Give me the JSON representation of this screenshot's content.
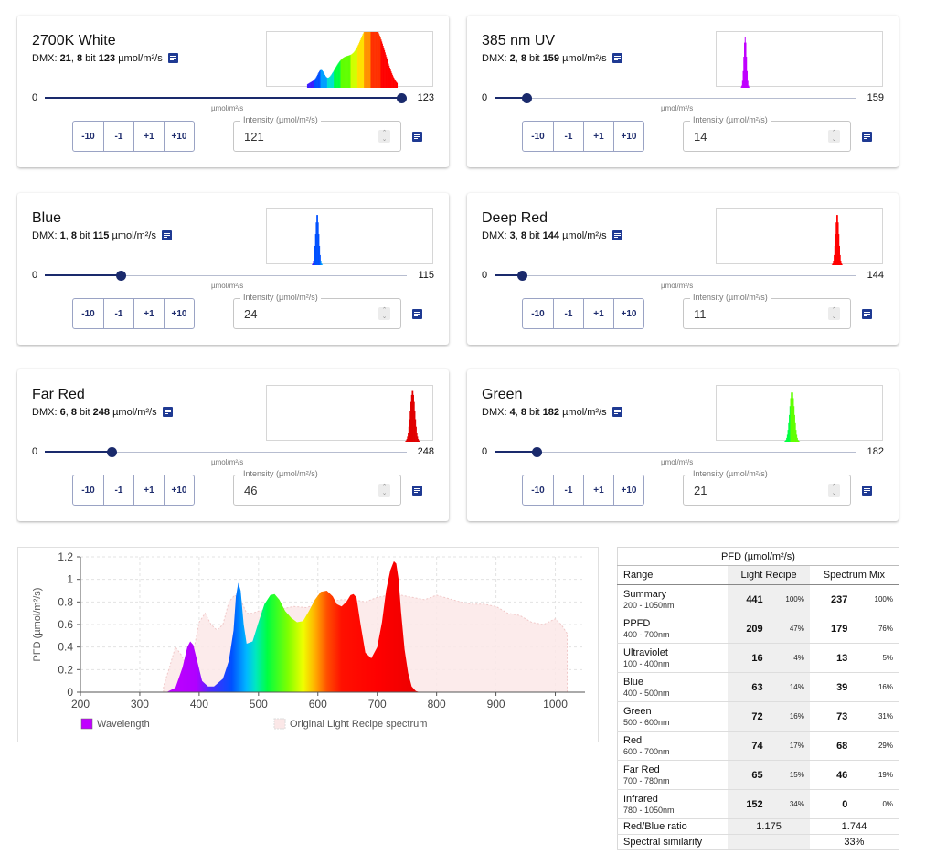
{
  "channels": [
    {
      "name": "2700K White",
      "dmx_prefix": "DMX: ",
      "dmx_channel": "21",
      "bit_sep": ", ",
      "bits": "8",
      "bit_word": " bit ",
      "max_text": "123",
      "unit_suffix": " µmol/m²/s",
      "min": "0",
      "max": "123",
      "value": 121,
      "max_value": 123,
      "value_text": "121",
      "spectrum": "white"
    },
    {
      "name": "385 nm UV",
      "dmx_prefix": "DMX: ",
      "dmx_channel": "2",
      "bit_sep": ", ",
      "bits": "8",
      "bit_word": " bit ",
      "max_text": "159",
      "unit_suffix": " µmol/m²/s",
      "min": "0",
      "max": "159",
      "value": 14,
      "max_value": 159,
      "value_text": "14",
      "spectrum": "uv"
    },
    {
      "name": "Blue",
      "dmx_prefix": "DMX: ",
      "dmx_channel": "1",
      "bit_sep": ", ",
      "bits": "8",
      "bit_word": " bit ",
      "max_text": "115",
      "unit_suffix": " µmol/m²/s",
      "min": "0",
      "max": "115",
      "value": 24,
      "max_value": 115,
      "value_text": "24",
      "spectrum": "blue"
    },
    {
      "name": "Deep Red",
      "dmx_prefix": "DMX: ",
      "dmx_channel": "3",
      "bit_sep": ", ",
      "bits": "8",
      "bit_word": " bit ",
      "max_text": "144",
      "unit_suffix": " µmol/m²/s",
      "min": "0",
      "max": "144",
      "value": 11,
      "max_value": 144,
      "value_text": "11",
      "spectrum": "deepred"
    },
    {
      "name": "Far Red",
      "dmx_prefix": "DMX: ",
      "dmx_channel": "6",
      "bit_sep": ", ",
      "bits": "8",
      "bit_word": " bit ",
      "max_text": "248",
      "unit_suffix": " µmol/m²/s",
      "min": "0",
      "max": "248",
      "value": 46,
      "max_value": 248,
      "value_text": "46",
      "spectrum": "farred"
    },
    {
      "name": "Green",
      "dmx_prefix": "DMX: ",
      "dmx_channel": "4",
      "bit_sep": ", ",
      "bits": "8",
      "bit_word": " bit ",
      "max_text": "182",
      "unit_suffix": " µmol/m²/s",
      "min": "0",
      "max": "182",
      "value": 21,
      "max_value": 182,
      "value_text": "21",
      "spectrum": "green"
    }
  ],
  "common": {
    "slider_unit": "µmol/m²/s",
    "field_label": "Intensity (µmol/m²/s)",
    "steps": [
      "-10",
      "-1",
      "+1",
      "+10"
    ],
    "spin_up": "⌃",
    "spin_down": "⌄"
  },
  "chart_data": {
    "type": "area",
    "ylabel": "PFD (µmol/m²/s)",
    "x_ticks": [
      "200",
      "300",
      "400",
      "500",
      "600",
      "700",
      "800",
      "900",
      "1000"
    ],
    "y_ticks": [
      "0",
      "0.2",
      "0.4",
      "0.6",
      "0.8",
      "1",
      "1.2"
    ],
    "xlim": [
      200,
      1050
    ],
    "ylim": [
      0,
      1.2
    ],
    "legend": [
      "Wavelength",
      "Original Light Recipe spectrum"
    ],
    "legend_position": "bottom",
    "series": [
      {
        "name": "Wavelength",
        "x": [
          345,
          360,
          372,
          380,
          385,
          390,
          398,
          405,
          415,
          425,
          440,
          450,
          458,
          462,
          466,
          470,
          475,
          480,
          490,
          500,
          510,
          520,
          527,
          535,
          545,
          555,
          565,
          575,
          585,
          595,
          605,
          615,
          625,
          632,
          640,
          648,
          655,
          660,
          665,
          672,
          680,
          690,
          700,
          708,
          715,
          722,
          728,
          732,
          736,
          740,
          746,
          752,
          758,
          765,
          772,
          780
        ],
        "y": [
          0,
          0.04,
          0.22,
          0.4,
          0.45,
          0.42,
          0.25,
          0.1,
          0.05,
          0.05,
          0.12,
          0.28,
          0.55,
          0.85,
          0.97,
          0.9,
          0.6,
          0.43,
          0.45,
          0.62,
          0.78,
          0.86,
          0.87,
          0.82,
          0.72,
          0.66,
          0.62,
          0.63,
          0.72,
          0.82,
          0.89,
          0.9,
          0.85,
          0.78,
          0.76,
          0.8,
          0.86,
          0.87,
          0.84,
          0.6,
          0.35,
          0.3,
          0.4,
          0.62,
          0.9,
          1.08,
          1.16,
          1.14,
          1.0,
          0.72,
          0.38,
          0.17,
          0.05,
          0.01,
          0.0,
          0.0
        ]
      },
      {
        "name": "Original Light Recipe spectrum",
        "x": [
          340,
          350,
          360,
          370,
          380,
          390,
          400,
          410,
          420,
          430,
          440,
          450,
          460,
          470,
          480,
          490,
          500,
          520,
          540,
          560,
          580,
          600,
          620,
          640,
          660,
          680,
          700,
          720,
          740,
          760,
          780,
          800,
          820,
          840,
          860,
          880,
          900,
          920,
          940,
          960,
          980,
          1000,
          1010,
          1020
        ],
        "y": [
          0.05,
          0.22,
          0.4,
          0.33,
          0.22,
          0.35,
          0.62,
          0.7,
          0.6,
          0.55,
          0.6,
          0.8,
          0.86,
          0.82,
          0.7,
          0.7,
          0.72,
          0.73,
          0.74,
          0.76,
          0.75,
          0.78,
          0.8,
          0.82,
          0.82,
          0.8,
          0.84,
          0.86,
          0.86,
          0.84,
          0.82,
          0.86,
          0.83,
          0.8,
          0.78,
          0.78,
          0.76,
          0.7,
          0.68,
          0.62,
          0.6,
          0.65,
          0.6,
          0.52
        ]
      }
    ]
  },
  "table": {
    "title": "PFD (µmol/m²/s)",
    "col_range": "Range",
    "col_recipe": "Light Recipe",
    "col_mix": "Spectrum Mix",
    "rows": [
      {
        "name": "Summary",
        "range": "200 - 1050nm",
        "recipe": "441",
        "recipe_pct": "100%",
        "mix": "237",
        "mix_pct": "100%"
      },
      {
        "name": "PPFD",
        "range": "400 - 700nm",
        "recipe": "209",
        "recipe_pct": "47%",
        "mix": "179",
        "mix_pct": "76%"
      },
      {
        "name": "Ultraviolet",
        "range": "100 - 400nm",
        "recipe": "16",
        "recipe_pct": "4%",
        "mix": "13",
        "mix_pct": "5%"
      },
      {
        "name": "Blue",
        "range": "400 - 500nm",
        "recipe": "63",
        "recipe_pct": "14%",
        "mix": "39",
        "mix_pct": "16%"
      },
      {
        "name": "Green",
        "range": "500 - 600nm",
        "recipe": "72",
        "recipe_pct": "16%",
        "mix": "73",
        "mix_pct": "31%"
      },
      {
        "name": "Red",
        "range": "600 - 700nm",
        "recipe": "74",
        "recipe_pct": "17%",
        "mix": "68",
        "mix_pct": "29%"
      },
      {
        "name": "Far Red",
        "range": "700 - 780nm",
        "recipe": "65",
        "recipe_pct": "15%",
        "mix": "46",
        "mix_pct": "19%"
      },
      {
        "name": "Infrared",
        "range": "780 - 1050nm",
        "recipe": "152",
        "recipe_pct": "34%",
        "mix": "0",
        "mix_pct": "0%"
      }
    ],
    "ratio_label": "Red/Blue ratio",
    "ratio_recipe": "1.175",
    "ratio_mix": "1.744",
    "similarity_label": "Spectral similarity",
    "similarity_value": "33%"
  }
}
